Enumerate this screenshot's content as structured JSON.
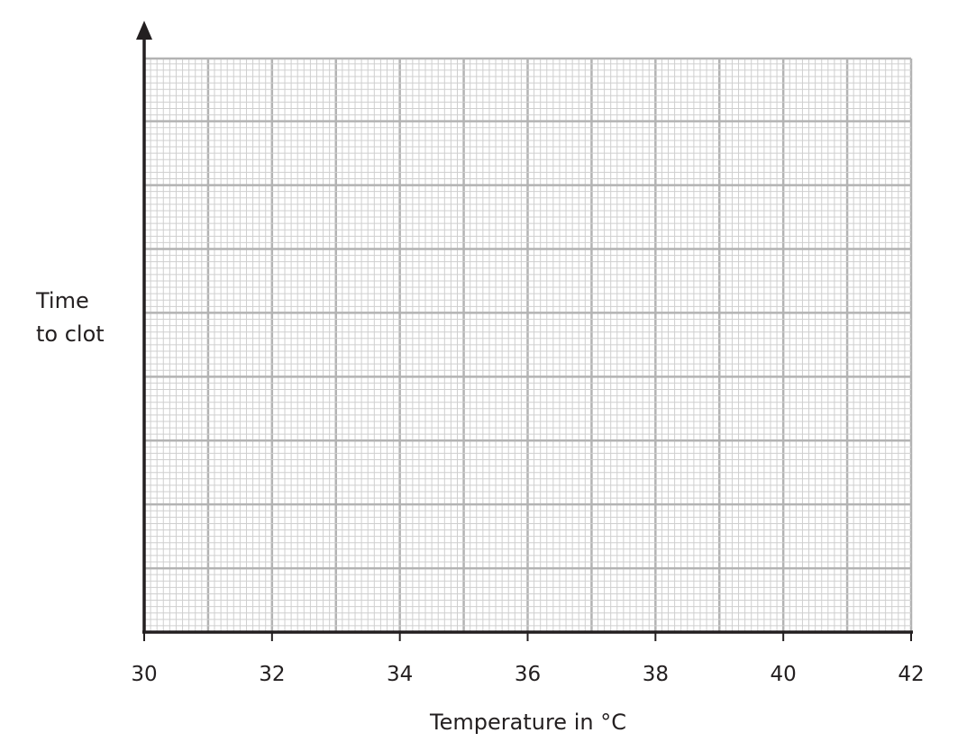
{
  "chart_data": {
    "type": "scatter",
    "x_label": "Temperature in °C",
    "y_label": [
      "Time",
      "to clot"
    ],
    "xlim": [
      30,
      42
    ],
    "xticks": [
      30,
      32,
      34,
      36,
      38,
      40,
      42
    ],
    "grid": true
  }
}
